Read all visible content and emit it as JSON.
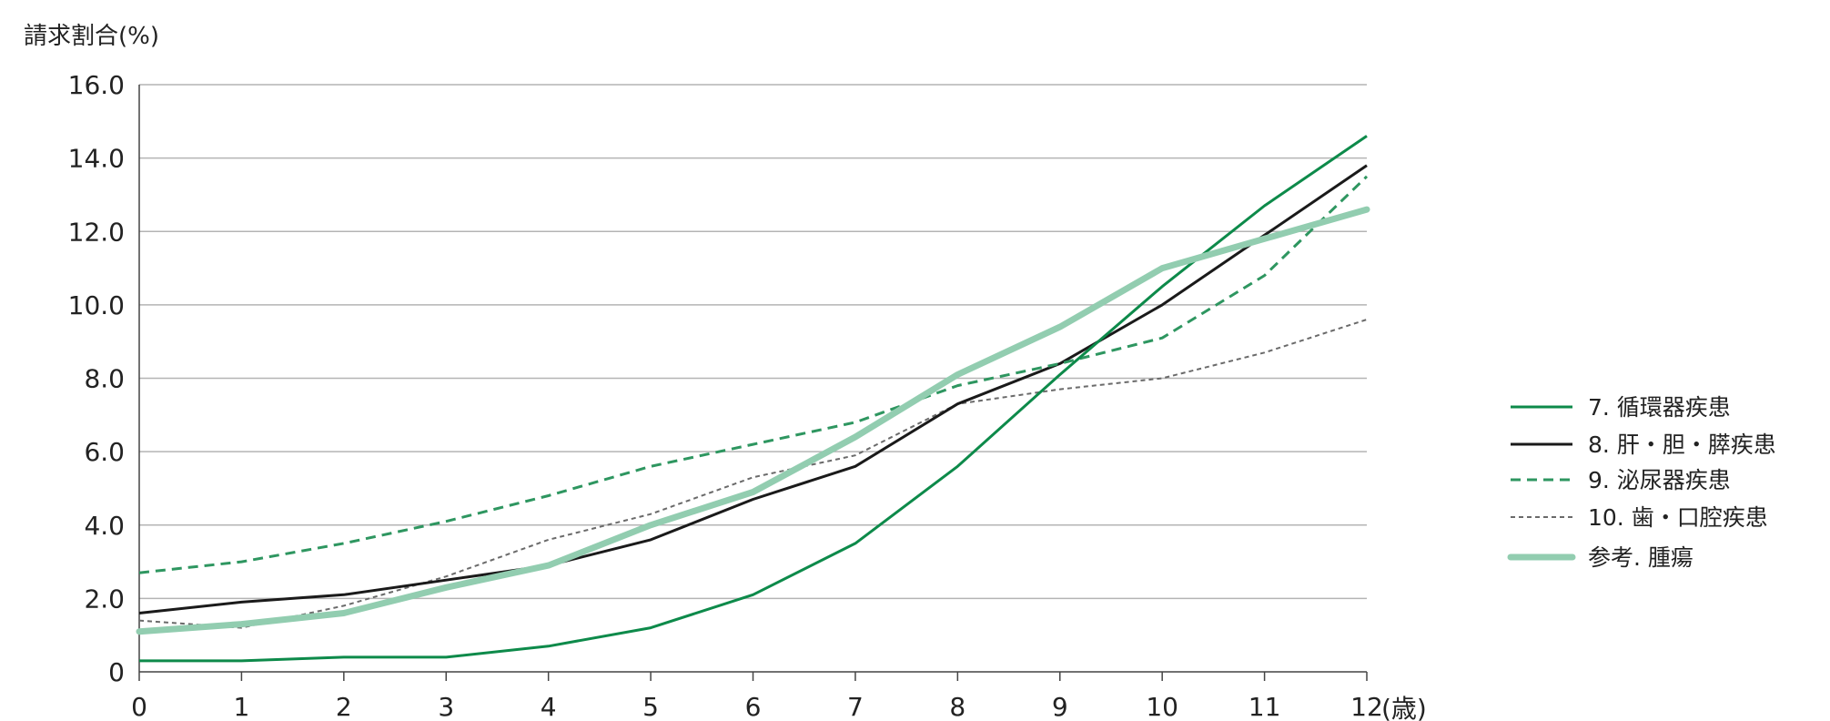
{
  "chart_data": {
    "type": "line",
    "ylabel": "請求割合(%)",
    "xlabel_unit": "(歳)",
    "x": [
      0,
      1,
      2,
      3,
      4,
      5,
      6,
      7,
      8,
      9,
      10,
      11,
      12
    ],
    "x_tick_labels": [
      "0",
      "1",
      "2",
      "3",
      "4",
      "5",
      "6",
      "7",
      "8",
      "9",
      "10",
      "11",
      "12"
    ],
    "ylim": [
      0,
      16
    ],
    "y_ticks": [
      0,
      2,
      4,
      6,
      8,
      10,
      12,
      14,
      16
    ],
    "y_tick_labels": [
      "0",
      "2.0",
      "4.0",
      "6.0",
      "8.0",
      "10.0",
      "12.0",
      "14.0",
      "16.0"
    ],
    "grid": "horizontal",
    "legend_position": "right",
    "series": [
      {
        "name": "7. 循環器疾患",
        "color": "#0d8a4a",
        "style": "solid",
        "values": [
          0.3,
          0.3,
          0.4,
          0.4,
          0.7,
          1.2,
          2.1,
          3.5,
          5.6,
          8.1,
          10.5,
          12.7,
          14.6
        ]
      },
      {
        "name": "8. 肝・胆・膵疾患",
        "color": "#1a1a1a",
        "style": "solid",
        "values": [
          1.6,
          1.9,
          2.1,
          2.5,
          2.9,
          3.6,
          4.7,
          5.6,
          7.3,
          8.4,
          10.0,
          11.9,
          13.8
        ]
      },
      {
        "name": "9. 泌尿器疾患",
        "color": "#2e9660",
        "style": "dashed",
        "values": [
          2.7,
          3.0,
          3.5,
          4.1,
          4.8,
          5.6,
          6.2,
          6.8,
          7.8,
          8.4,
          9.1,
          10.8,
          13.5
        ]
      },
      {
        "name": "10. 歯・口腔疾患",
        "color": "#6a6a6a",
        "style": "dotted",
        "values": [
          1.4,
          1.2,
          1.8,
          2.6,
          3.6,
          4.3,
          5.3,
          5.9,
          7.3,
          7.7,
          8.0,
          8.7,
          9.6
        ]
      },
      {
        "name": "参考. 腫瘍",
        "color": "#92cdb0",
        "style": "thick",
        "values": [
          1.1,
          1.3,
          1.6,
          2.3,
          2.9,
          4.0,
          4.9,
          6.4,
          8.1,
          9.4,
          11.0,
          11.8,
          12.6
        ]
      }
    ]
  }
}
